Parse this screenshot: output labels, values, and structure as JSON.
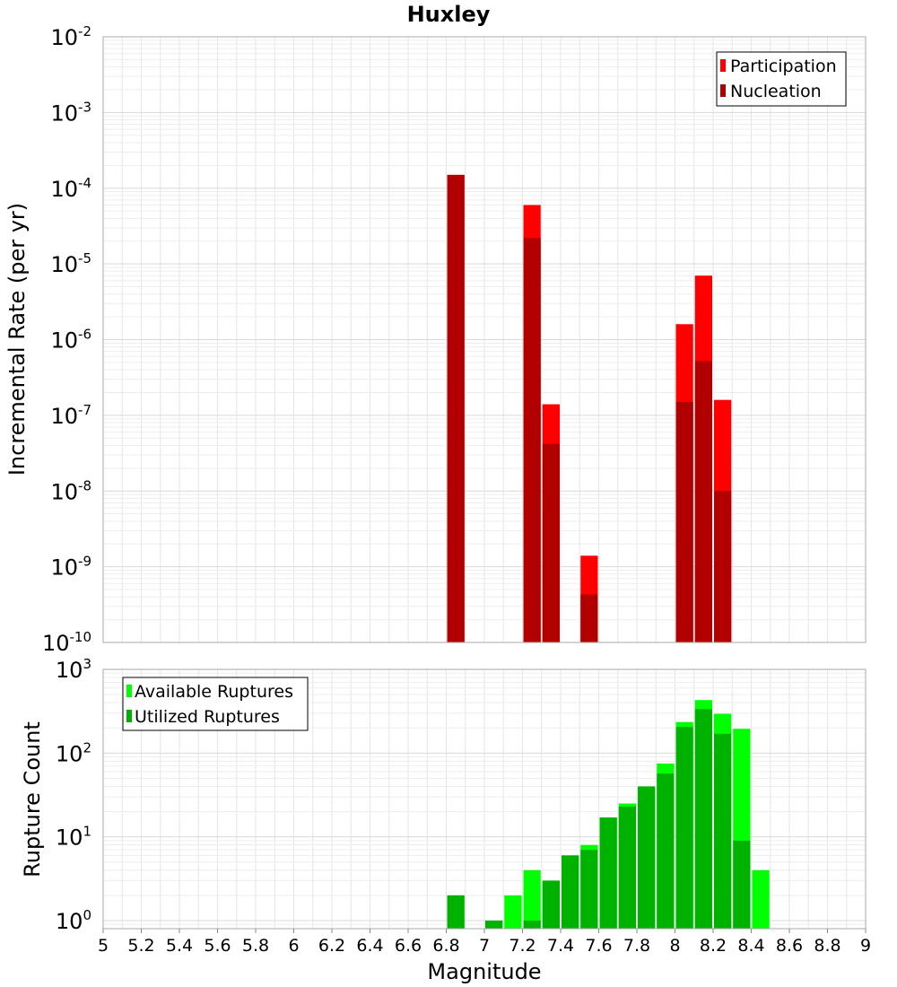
{
  "chart_data": [
    {
      "type": "bar",
      "title": "Huxley",
      "xlabel": "",
      "ylabel": "Incremental Rate (per yr)",
      "yscale": "log",
      "ylim": [
        1e-10,
        0.01
      ],
      "xlim": [
        5,
        9
      ],
      "bar_width": 0.1,
      "grid": true,
      "legend_position": "top-right",
      "y_ticks": [
        {
          "exp": "-10"
        },
        {
          "exp": "-9"
        },
        {
          "exp": "-8"
        },
        {
          "exp": "-7"
        },
        {
          "exp": "-6"
        },
        {
          "exp": "-5"
        },
        {
          "exp": "-4"
        },
        {
          "exp": "-3"
        },
        {
          "exp": "-2"
        }
      ],
      "series": [
        {
          "name": "Participation",
          "color": "#ff0000",
          "points": [
            {
              "x": 6.85,
              "y": 0.00015
            },
            {
              "x": 7.25,
              "y": 6e-05
            },
            {
              "x": 7.35,
              "y": 1.4e-07
            },
            {
              "x": 7.55,
              "y": 1.4e-09
            },
            {
              "x": 8.05,
              "y": 1.6e-06
            },
            {
              "x": 8.15,
              "y": 7e-06
            },
            {
              "x": 8.25,
              "y": 1.6e-07
            }
          ]
        },
        {
          "name": "Nucleation",
          "color": "#b20000",
          "points": [
            {
              "x": 6.85,
              "y": 0.00015
            },
            {
              "x": 7.25,
              "y": 2.2e-05
            },
            {
              "x": 7.35,
              "y": 4.2e-08
            },
            {
              "x": 7.55,
              "y": 4.3e-10
            },
            {
              "x": 8.05,
              "y": 1.5e-07
            },
            {
              "x": 8.15,
              "y": 5.2e-07
            },
            {
              "x": 8.25,
              "y": 1e-08
            }
          ]
        }
      ]
    },
    {
      "type": "bar",
      "title": "",
      "xlabel": "Magnitude",
      "ylabel": "Rupture Count",
      "yscale": "log",
      "ylim": [
        0.8,
        1000
      ],
      "xlim": [
        5,
        9
      ],
      "bar_width": 0.1,
      "grid": true,
      "legend_position": "top-left",
      "y_ticks": [
        {
          "exp": "0"
        },
        {
          "exp": "1"
        },
        {
          "exp": "2"
        },
        {
          "exp": "3"
        }
      ],
      "x_ticks": [
        "5",
        "5.2",
        "5.4",
        "5.6",
        "5.8",
        "6",
        "6.2",
        "6.4",
        "6.6",
        "6.8",
        "7",
        "7.2",
        "7.4",
        "7.6",
        "7.8",
        "8",
        "8.2",
        "8.4",
        "8.6",
        "8.8",
        "9"
      ],
      "series": [
        {
          "name": "Available Ruptures",
          "color": "#00ff00",
          "points": [
            {
              "x": 6.85,
              "y": 2
            },
            {
              "x": 7.05,
              "y": 1
            },
            {
              "x": 7.15,
              "y": 2
            },
            {
              "x": 7.25,
              "y": 4
            },
            {
              "x": 7.35,
              "y": 3
            },
            {
              "x": 7.45,
              "y": 6
            },
            {
              "x": 7.55,
              "y": 8
            },
            {
              "x": 7.65,
              "y": 17
            },
            {
              "x": 7.75,
              "y": 25
            },
            {
              "x": 7.85,
              "y": 40
            },
            {
              "x": 7.95,
              "y": 75
            },
            {
              "x": 8.05,
              "y": 235
            },
            {
              "x": 8.15,
              "y": 430
            },
            {
              "x": 8.25,
              "y": 295
            },
            {
              "x": 8.35,
              "y": 195
            },
            {
              "x": 8.45,
              "y": 4
            }
          ]
        },
        {
          "name": "Utilized Ruptures",
          "color": "#00b200",
          "points": [
            {
              "x": 6.85,
              "y": 2
            },
            {
              "x": 7.05,
              "y": 1
            },
            {
              "x": 7.25,
              "y": 1
            },
            {
              "x": 7.35,
              "y": 3
            },
            {
              "x": 7.45,
              "y": 6
            },
            {
              "x": 7.55,
              "y": 7
            },
            {
              "x": 7.65,
              "y": 17
            },
            {
              "x": 7.75,
              "y": 23
            },
            {
              "x": 7.85,
              "y": 40
            },
            {
              "x": 7.95,
              "y": 57
            },
            {
              "x": 8.05,
              "y": 205
            },
            {
              "x": 8.15,
              "y": 335
            },
            {
              "x": 8.25,
              "y": 170
            },
            {
              "x": 8.35,
              "y": 9
            }
          ]
        }
      ]
    }
  ]
}
